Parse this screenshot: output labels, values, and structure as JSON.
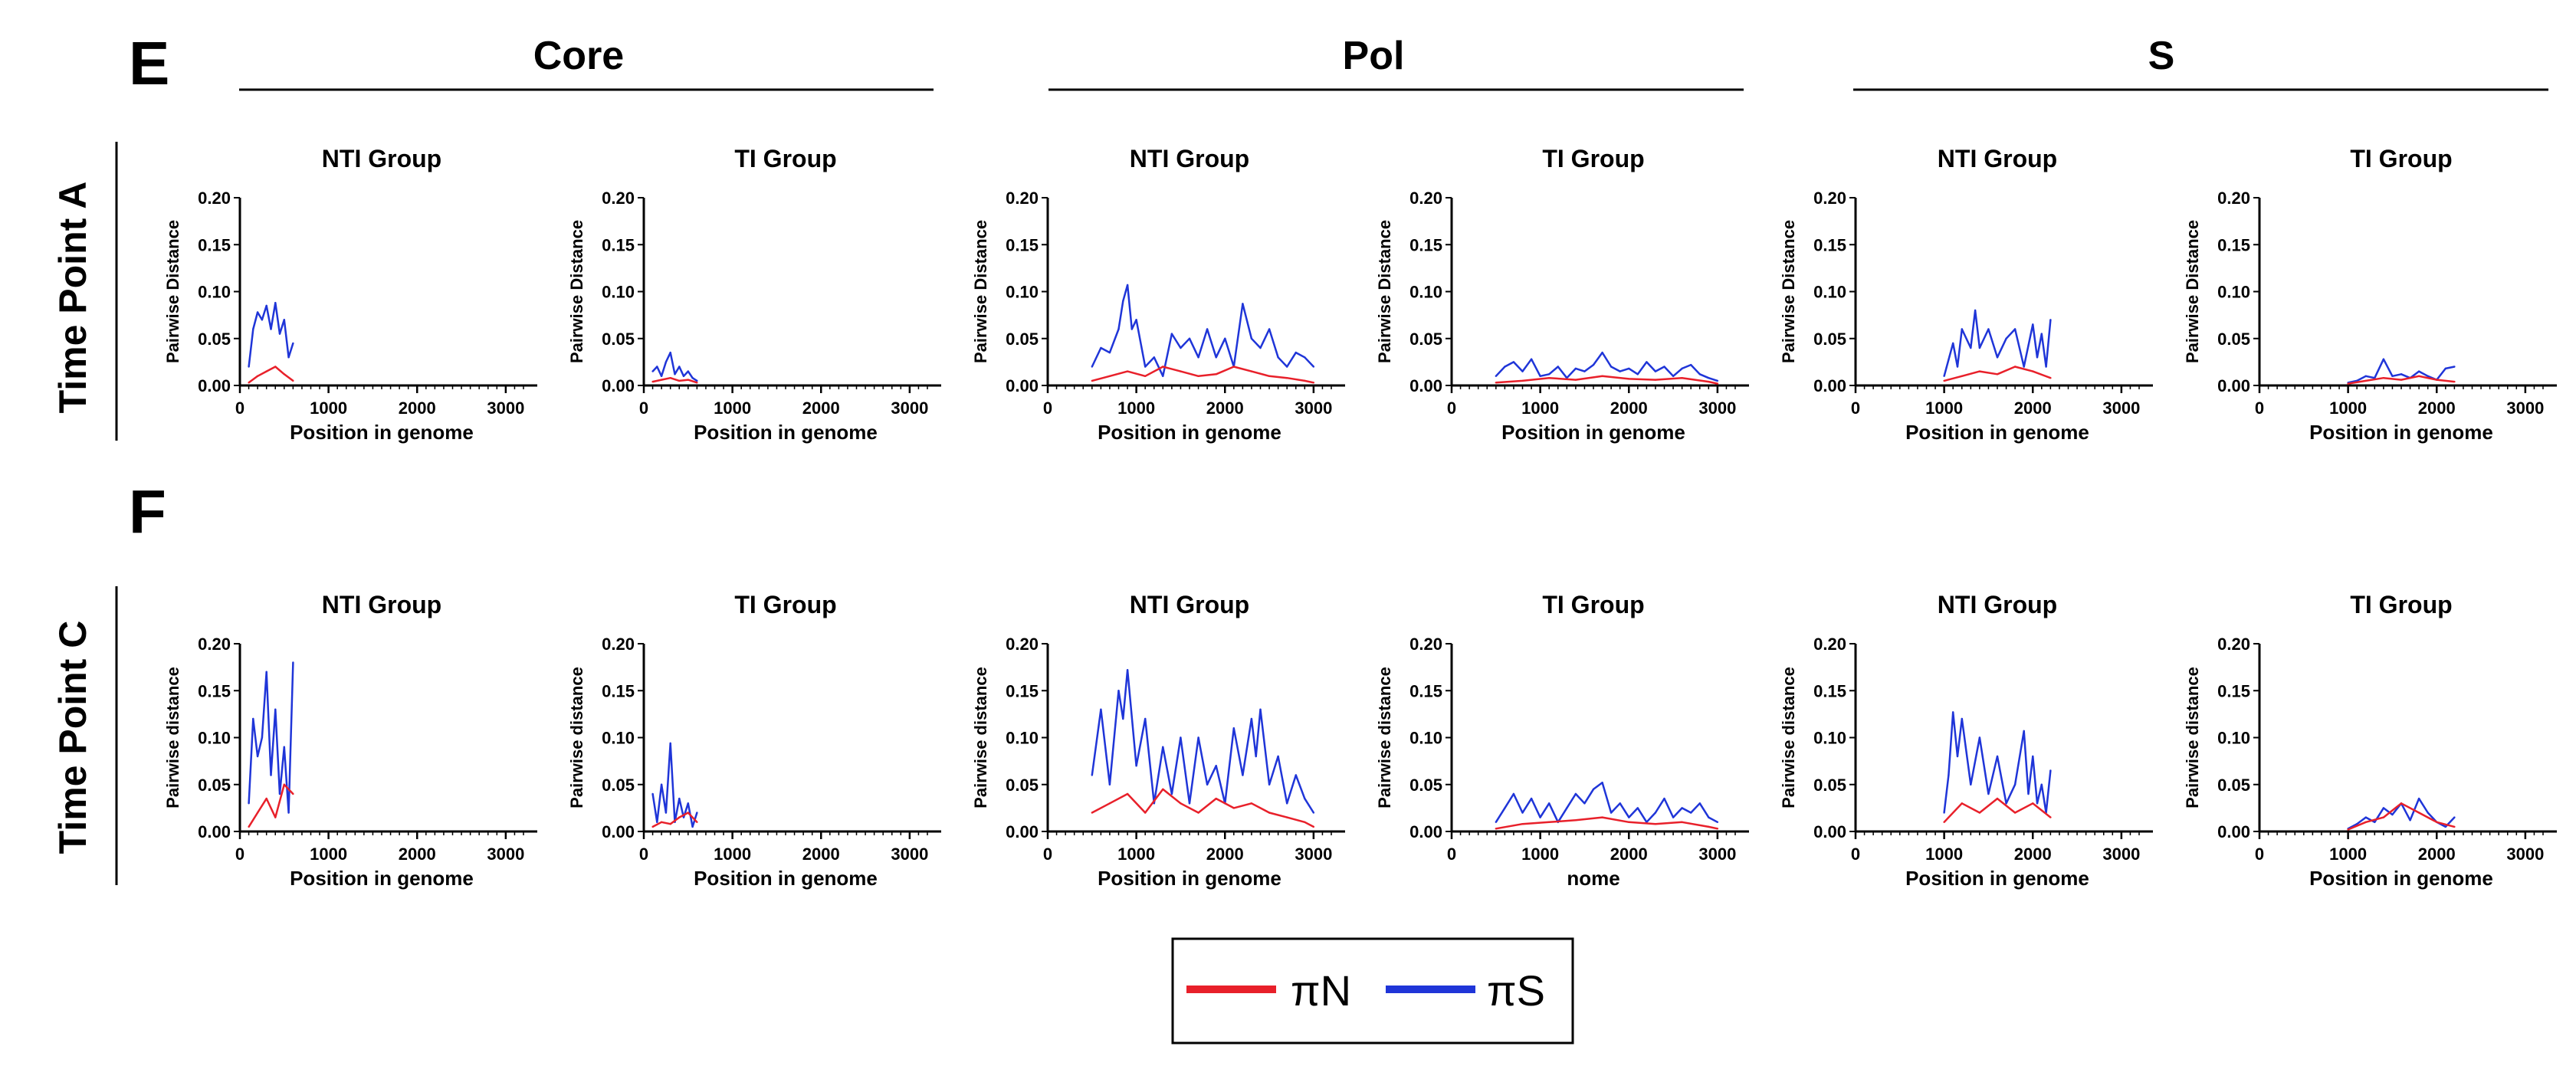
{
  "panel_labels": [
    "E",
    "F"
  ],
  "row_labels": [
    "Time Point A",
    "Time Point C"
  ],
  "gene_headers": [
    "Core",
    "Pol",
    "S"
  ],
  "legend": {
    "label_n": "πN",
    "label_s": "πS",
    "color_n": "#e8202a",
    "color_s": "#1f35d8"
  },
  "chart_data": [
    {
      "row": 0,
      "col": 0,
      "type": "line",
      "title": "NTI Group",
      "ylabel": "Pairwise Distance",
      "xlabel": "Position in genome",
      "xlim": [
        0,
        3200
      ],
      "ylim": [
        0,
        0.2
      ],
      "xticks": [
        "0",
        "1000",
        "2000",
        "3000"
      ],
      "yticks": [
        "0.00",
        "0.05",
        "0.10",
        "0.15",
        "0.20"
      ],
      "series": [
        {
          "name": "πS",
          "x": [
            100,
            150,
            200,
            250,
            300,
            350,
            400,
            450,
            500,
            550,
            600
          ],
          "values": [
            0.02,
            0.06,
            0.078,
            0.07,
            0.085,
            0.06,
            0.088,
            0.055,
            0.07,
            0.03,
            0.045
          ]
        },
        {
          "name": "πN",
          "x": [
            100,
            200,
            300,
            400,
            500,
            600
          ],
          "values": [
            0.003,
            0.01,
            0.015,
            0.02,
            0.012,
            0.005
          ]
        }
      ]
    },
    {
      "row": 0,
      "col": 1,
      "type": "line",
      "title": "TI Group",
      "ylabel": "Pairwise Distance",
      "xlabel": "Position in genome",
      "xlim": [
        0,
        3200
      ],
      "ylim": [
        0,
        0.2
      ],
      "xticks": [
        "0",
        "1000",
        "2000",
        "3000"
      ],
      "yticks": [
        "0.00",
        "0.05",
        "0.10",
        "0.15",
        "0.20"
      ],
      "series": [
        {
          "name": "πS",
          "x": [
            100,
            150,
            200,
            250,
            300,
            350,
            400,
            450,
            500,
            550,
            600
          ],
          "values": [
            0.015,
            0.02,
            0.01,
            0.025,
            0.035,
            0.012,
            0.02,
            0.01,
            0.015,
            0.008,
            0.005
          ]
        },
        {
          "name": "πN",
          "x": [
            100,
            200,
            300,
            400,
            500,
            600
          ],
          "values": [
            0.004,
            0.006,
            0.008,
            0.005,
            0.006,
            0.003
          ]
        }
      ]
    },
    {
      "row": 0,
      "col": 2,
      "type": "line",
      "title": "NTI Group",
      "ylabel": "Pairwise Distance",
      "xlabel": "Position in genome",
      "xlim": [
        0,
        3200
      ],
      "ylim": [
        0,
        0.2
      ],
      "xticks": [
        "0",
        "1000",
        "2000",
        "3000"
      ],
      "yticks": [
        "0.00",
        "0.05",
        "0.10",
        "0.15",
        "0.20"
      ],
      "series": [
        {
          "name": "πS",
          "x": [
            500,
            600,
            700,
            800,
            850,
            900,
            950,
            1000,
            1100,
            1200,
            1300,
            1400,
            1500,
            1600,
            1700,
            1800,
            1900,
            2000,
            2100,
            2200,
            2300,
            2400,
            2500,
            2600,
            2700,
            2800,
            2900,
            3000
          ],
          "values": [
            0.02,
            0.04,
            0.035,
            0.06,
            0.09,
            0.107,
            0.06,
            0.07,
            0.02,
            0.03,
            0.01,
            0.055,
            0.04,
            0.05,
            0.03,
            0.06,
            0.03,
            0.05,
            0.02,
            0.087,
            0.05,
            0.04,
            0.06,
            0.03,
            0.02,
            0.035,
            0.03,
            0.02
          ]
        },
        {
          "name": "πN",
          "x": [
            500,
            700,
            900,
            1100,
            1300,
            1500,
            1700,
            1900,
            2100,
            2300,
            2500,
            2700,
            2900,
            3000
          ],
          "values": [
            0.005,
            0.01,
            0.015,
            0.01,
            0.02,
            0.015,
            0.01,
            0.012,
            0.02,
            0.015,
            0.01,
            0.008,
            0.005,
            0.003
          ]
        }
      ]
    },
    {
      "row": 0,
      "col": 3,
      "type": "line",
      "title": "TI Group",
      "ylabel": "Pairwise Distance",
      "xlabel": "Position in genome",
      "xlim": [
        0,
        3200
      ],
      "ylim": [
        0,
        0.2
      ],
      "xticks": [
        "0",
        "1000",
        "2000",
        "3000"
      ],
      "yticks": [
        "0.00",
        "0.05",
        "0.10",
        "0.15",
        "0.20"
      ],
      "series": [
        {
          "name": "πS",
          "x": [
            500,
            600,
            700,
            800,
            900,
            1000,
            1100,
            1200,
            1300,
            1400,
            1500,
            1600,
            1700,
            1800,
            1900,
            2000,
            2100,
            2200,
            2300,
            2400,
            2500,
            2600,
            2700,
            2800,
            2900,
            3000
          ],
          "values": [
            0.01,
            0.02,
            0.025,
            0.015,
            0.028,
            0.01,
            0.012,
            0.02,
            0.008,
            0.018,
            0.015,
            0.022,
            0.035,
            0.02,
            0.015,
            0.018,
            0.012,
            0.025,
            0.015,
            0.02,
            0.01,
            0.018,
            0.022,
            0.012,
            0.008,
            0.005
          ]
        },
        {
          "name": "πN",
          "x": [
            500,
            800,
            1100,
            1400,
            1700,
            2000,
            2300,
            2600,
            2900,
            3000
          ],
          "values": [
            0.003,
            0.005,
            0.008,
            0.006,
            0.01,
            0.007,
            0.006,
            0.008,
            0.004,
            0.002
          ]
        }
      ]
    },
    {
      "row": 0,
      "col": 4,
      "type": "line",
      "title": "NTI Group",
      "ylabel": "Pairwise Distance",
      "xlabel": "Position in genome",
      "xlim": [
        0,
        3200
      ],
      "ylim": [
        0,
        0.2
      ],
      "xticks": [
        "0",
        "1000",
        "2000",
        "3000"
      ],
      "yticks": [
        "0.00",
        "0.05",
        "0.10",
        "0.15",
        "0.20"
      ],
      "series": [
        {
          "name": "πS",
          "x": [
            1000,
            1100,
            1150,
            1200,
            1300,
            1350,
            1400,
            1500,
            1600,
            1700,
            1800,
            1900,
            2000,
            2050,
            2100,
            2150,
            2200
          ],
          "values": [
            0.01,
            0.045,
            0.02,
            0.06,
            0.04,
            0.08,
            0.04,
            0.06,
            0.03,
            0.05,
            0.06,
            0.02,
            0.065,
            0.03,
            0.055,
            0.02,
            0.07
          ]
        },
        {
          "name": "πN",
          "x": [
            1000,
            1200,
            1400,
            1600,
            1800,
            2000,
            2200
          ],
          "values": [
            0.005,
            0.01,
            0.015,
            0.012,
            0.02,
            0.015,
            0.008
          ]
        }
      ]
    },
    {
      "row": 0,
      "col": 5,
      "type": "line",
      "title": "TI Group",
      "ylabel": "Pairwise Distance",
      "xlabel": "Position in genome",
      "xlim": [
        0,
        3200
      ],
      "ylim": [
        0,
        0.2
      ],
      "xticks": [
        "0",
        "1000",
        "2000",
        "3000"
      ],
      "yticks": [
        "0.00",
        "0.05",
        "0.10",
        "0.15",
        "0.20"
      ],
      "series": [
        {
          "name": "πS",
          "x": [
            1000,
            1100,
            1200,
            1300,
            1400,
            1500,
            1600,
            1700,
            1800,
            1900,
            2000,
            2100,
            2200
          ],
          "values": [
            0.003,
            0.005,
            0.01,
            0.008,
            0.028,
            0.01,
            0.012,
            0.008,
            0.015,
            0.01,
            0.006,
            0.018,
            0.02
          ]
        },
        {
          "name": "πN",
          "x": [
            1000,
            1200,
            1400,
            1600,
            1800,
            2000,
            2200
          ],
          "values": [
            0.002,
            0.005,
            0.008,
            0.006,
            0.01,
            0.006,
            0.004
          ]
        }
      ]
    },
    {
      "row": 1,
      "col": 0,
      "type": "line",
      "title": "NTI Group",
      "ylabel": "Pairwise distance",
      "xlabel": "Position in genome",
      "xlim": [
        0,
        3200
      ],
      "ylim": [
        0,
        0.2
      ],
      "xticks": [
        "0",
        "1000",
        "2000",
        "3000"
      ],
      "yticks": [
        "0.00",
        "0.05",
        "0.10",
        "0.15",
        "0.20"
      ],
      "series": [
        {
          "name": "πS",
          "x": [
            100,
            150,
            200,
            250,
            300,
            350,
            400,
            450,
            500,
            550,
            600
          ],
          "values": [
            0.03,
            0.12,
            0.08,
            0.1,
            0.17,
            0.06,
            0.13,
            0.04,
            0.09,
            0.02,
            0.18
          ]
        },
        {
          "name": "πN",
          "x": [
            100,
            200,
            300,
            400,
            500,
            600
          ],
          "values": [
            0.005,
            0.02,
            0.035,
            0.015,
            0.05,
            0.04
          ]
        }
      ]
    },
    {
      "row": 1,
      "col": 1,
      "type": "line",
      "title": "TI Group",
      "ylabel": "Pairwise distance",
      "xlabel": "Position in genome",
      "xlim": [
        0,
        3200
      ],
      "ylim": [
        0,
        0.2
      ],
      "xticks": [
        "0",
        "1000",
        "2000",
        "3000"
      ],
      "yticks": [
        "0.00",
        "0.05",
        "0.10",
        "0.15",
        "0.20"
      ],
      "series": [
        {
          "name": "πS",
          "x": [
            100,
            150,
            200,
            250,
            300,
            350,
            400,
            450,
            500,
            550,
            600
          ],
          "values": [
            0.04,
            0.01,
            0.05,
            0.02,
            0.094,
            0.01,
            0.035,
            0.015,
            0.03,
            0.005,
            0.02
          ]
        },
        {
          "name": "πN",
          "x": [
            100,
            200,
            300,
            400,
            500,
            600
          ],
          "values": [
            0.005,
            0.01,
            0.008,
            0.015,
            0.02,
            0.01
          ]
        }
      ]
    },
    {
      "row": 1,
      "col": 2,
      "type": "line",
      "title": "NTI Group",
      "ylabel": "Pairwise distance",
      "xlabel": "Position in genome",
      "xlim": [
        0,
        3200
      ],
      "ylim": [
        0,
        0.2
      ],
      "xticks": [
        "0",
        "1000",
        "2000",
        "3000"
      ],
      "yticks": [
        "0.00",
        "0.05",
        "0.10",
        "0.15",
        "0.20"
      ],
      "series": [
        {
          "name": "πS",
          "x": [
            500,
            600,
            700,
            800,
            850,
            900,
            1000,
            1100,
            1200,
            1300,
            1400,
            1500,
            1600,
            1700,
            1800,
            1900,
            2000,
            2100,
            2200,
            2300,
            2350,
            2400,
            2500,
            2600,
            2700,
            2800,
            2900,
            3000
          ],
          "values": [
            0.06,
            0.13,
            0.05,
            0.15,
            0.12,
            0.172,
            0.07,
            0.12,
            0.03,
            0.09,
            0.04,
            0.1,
            0.03,
            0.1,
            0.05,
            0.07,
            0.03,
            0.11,
            0.06,
            0.12,
            0.08,
            0.13,
            0.05,
            0.08,
            0.03,
            0.06,
            0.035,
            0.02
          ]
        },
        {
          "name": "πN",
          "x": [
            500,
            700,
            900,
            1100,
            1300,
            1500,
            1700,
            1900,
            2100,
            2300,
            2500,
            2700,
            2900,
            3000
          ],
          "values": [
            0.02,
            0.03,
            0.04,
            0.02,
            0.045,
            0.03,
            0.02,
            0.035,
            0.025,
            0.03,
            0.02,
            0.015,
            0.01,
            0.005
          ]
        }
      ]
    },
    {
      "row": 1,
      "col": 3,
      "type": "line",
      "title": "TI Group",
      "ylabel": "Pairwise distance",
      "xlabel": "nome",
      "xlim": [
        0,
        3200
      ],
      "ylim": [
        0,
        0.2
      ],
      "xticks": [
        "0",
        "1000",
        "2000",
        "3000"
      ],
      "yticks": [
        "0.00",
        "0.05",
        "0.10",
        "0.15",
        "0.20"
      ],
      "series": [
        {
          "name": "πS",
          "x": [
            500,
            600,
            700,
            800,
            900,
            1000,
            1100,
            1200,
            1300,
            1400,
            1500,
            1600,
            1700,
            1800,
            1900,
            2000,
            2100,
            2200,
            2300,
            2400,
            2500,
            2600,
            2700,
            2800,
            2900,
            3000
          ],
          "values": [
            0.01,
            0.025,
            0.04,
            0.02,
            0.035,
            0.015,
            0.03,
            0.01,
            0.025,
            0.04,
            0.03,
            0.045,
            0.052,
            0.02,
            0.03,
            0.015,
            0.025,
            0.01,
            0.02,
            0.035,
            0.015,
            0.025,
            0.02,
            0.03,
            0.015,
            0.01
          ]
        },
        {
          "name": "πN",
          "x": [
            500,
            800,
            1100,
            1400,
            1700,
            2000,
            2300,
            2600,
            2900,
            3000
          ],
          "values": [
            0.003,
            0.008,
            0.01,
            0.012,
            0.015,
            0.01,
            0.008,
            0.01,
            0.005,
            0.003
          ]
        }
      ]
    },
    {
      "row": 1,
      "col": 4,
      "type": "line",
      "title": "NTI Group",
      "ylabel": "Pairwise distance",
      "xlabel": "Position in genome",
      "xlim": [
        0,
        3200
      ],
      "ylim": [
        0,
        0.2
      ],
      "xticks": [
        "0",
        "1000",
        "2000",
        "3000"
      ],
      "yticks": [
        "0.00",
        "0.05",
        "0.10",
        "0.15",
        "0.20"
      ],
      "series": [
        {
          "name": "πS",
          "x": [
            1000,
            1050,
            1100,
            1150,
            1200,
            1300,
            1400,
            1500,
            1600,
            1700,
            1800,
            1900,
            1950,
            2000,
            2050,
            2100,
            2150,
            2200
          ],
          "values": [
            0.02,
            0.06,
            0.127,
            0.08,
            0.12,
            0.05,
            0.1,
            0.04,
            0.08,
            0.03,
            0.05,
            0.107,
            0.04,
            0.08,
            0.03,
            0.05,
            0.02,
            0.065
          ]
        },
        {
          "name": "πN",
          "x": [
            1000,
            1200,
            1400,
            1600,
            1800,
            2000,
            2200
          ],
          "values": [
            0.01,
            0.03,
            0.02,
            0.035,
            0.02,
            0.03,
            0.015
          ]
        }
      ]
    },
    {
      "row": 1,
      "col": 5,
      "type": "line",
      "title": "TI Group",
      "ylabel": "Pairwise distance",
      "xlabel": "Position in genome",
      "xlim": [
        0,
        3200
      ],
      "ylim": [
        0,
        0.2
      ],
      "xticks": [
        "0",
        "1000",
        "2000",
        "3000"
      ],
      "yticks": [
        "0.00",
        "0.05",
        "0.10",
        "0.15",
        "0.20"
      ],
      "series": [
        {
          "name": "πS",
          "x": [
            1000,
            1100,
            1200,
            1300,
            1400,
            1500,
            1600,
            1700,
            1800,
            1900,
            2000,
            2100,
            2200
          ],
          "values": [
            0.003,
            0.008,
            0.015,
            0.01,
            0.025,
            0.018,
            0.03,
            0.012,
            0.035,
            0.02,
            0.01,
            0.005,
            0.015
          ]
        },
        {
          "name": "πN",
          "x": [
            1000,
            1200,
            1400,
            1600,
            1800,
            2000,
            2200
          ],
          "values": [
            0.002,
            0.01,
            0.015,
            0.03,
            0.02,
            0.01,
            0.005
          ]
        }
      ]
    }
  ]
}
